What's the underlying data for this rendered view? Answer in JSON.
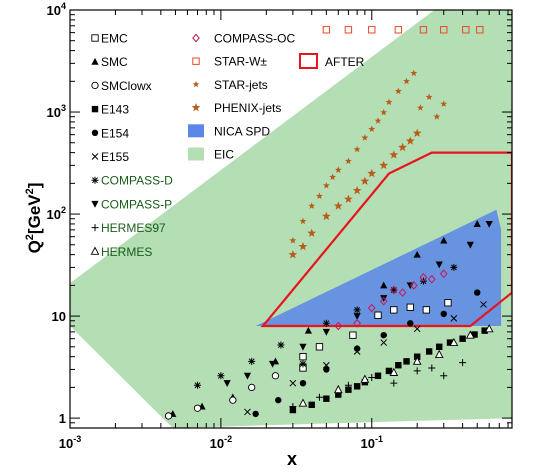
{
  "chart_data": {
    "type": "scatter",
    "xlabel": "x",
    "ylabel_main": "Q",
    "ylabel_sup1": "2",
    "ylabel_unit_open": "[GeV",
    "ylabel_sup2": "2",
    "ylabel_unit_close": "]",
    "x_scale": "log",
    "y_scale": "log",
    "xlim": [
      0.001,
      0.85
    ],
    "ylim": [
      0.8,
      10000
    ],
    "x_ticks": [
      {
        "value": 0.001,
        "base": "10",
        "exp": "-3"
      },
      {
        "value": 0.01,
        "base": "10",
        "exp": "-2"
      },
      {
        "value": 0.1,
        "base": "10",
        "exp": "-1"
      }
    ],
    "y_ticks": [
      {
        "value": 1,
        "label": "1"
      },
      {
        "value": 10,
        "label": "10"
      },
      {
        "value": 100,
        "base": "10",
        "exp": "2"
      },
      {
        "value": 1000,
        "base": "10",
        "exp": "3"
      },
      {
        "value": 10000,
        "base": "10",
        "exp": "4"
      }
    ],
    "regions": [
      {
        "name": "EIC",
        "color": "#b4deb4",
        "polygon": [
          [
            0.001,
            8
          ],
          [
            0.0048,
            0.8
          ],
          [
            0.85,
            1
          ],
          [
            0.85,
            10000
          ],
          [
            0.26,
            10000
          ],
          [
            0.001,
            21
          ]
        ]
      },
      {
        "name": "NICA SPD",
        "color": "#5b86e8",
        "polygon": [
          [
            0.017,
            8
          ],
          [
            0.3,
            8
          ],
          [
            0.72,
            8
          ],
          [
            0.72,
            70
          ],
          [
            0.67,
            110
          ],
          [
            0.017,
            8
          ]
        ]
      },
      {
        "name": "AFTER",
        "color": "#e8141e",
        "polygon": [
          [
            0.019,
            8
          ],
          [
            0.45,
            8
          ],
          [
            0.85,
            17
          ],
          [
            0.85,
            400
          ],
          [
            0.25,
            400
          ],
          [
            0.13,
            250
          ],
          [
            0.019,
            8
          ]
        ]
      }
    ],
    "series": [
      {
        "name": "EMC",
        "marker": "open-square",
        "points": [
          [
            0.035,
            3.1
          ],
          [
            0.035,
            4.0
          ],
          [
            0.045,
            5.0
          ],
          [
            0.075,
            6.5
          ],
          [
            0.11,
            10.2
          ],
          [
            0.14,
            11.5
          ],
          [
            0.18,
            12.2
          ],
          [
            0.23,
            11.5
          ],
          [
            0.32,
            13.5
          ]
        ]
      },
      {
        "name": "SMC",
        "marker": "filled-triangle",
        "points": [
          [
            0.0048,
            1.1
          ],
          [
            0.0075,
            1.3
          ],
          [
            0.012,
            1.6
          ],
          [
            0.023,
            3.6
          ],
          [
            0.038,
            7.2
          ],
          [
            0.12,
            20
          ],
          [
            0.2,
            40
          ],
          [
            0.3,
            55
          ],
          [
            0.5,
            80
          ]
        ]
      },
      {
        "name": "SMClowx",
        "marker": "open-circle",
        "points": [
          [
            0.0045,
            1.05
          ],
          [
            0.007,
            1.25
          ],
          [
            0.012,
            1.5
          ],
          [
            0.016,
            2.0
          ],
          [
            0.023,
            2.6
          ]
        ]
      },
      {
        "name": "E143",
        "marker": "filled-square",
        "points": [
          [
            0.03,
            1.2
          ],
          [
            0.04,
            1.35
          ],
          [
            0.05,
            1.55
          ],
          [
            0.06,
            1.7
          ],
          [
            0.07,
            1.9
          ],
          [
            0.08,
            2.05
          ],
          [
            0.09,
            2.25
          ],
          [
            0.11,
            2.6
          ],
          [
            0.13,
            2.9
          ],
          [
            0.15,
            3.3
          ],
          [
            0.17,
            3.6
          ],
          [
            0.2,
            4.0
          ],
          [
            0.24,
            4.5
          ],
          [
            0.28,
            5.0
          ],
          [
            0.33,
            5.5
          ],
          [
            0.4,
            6.0
          ],
          [
            0.48,
            6.6
          ],
          [
            0.56,
            7.2
          ]
        ]
      },
      {
        "name": "E154",
        "marker": "filled-circle",
        "points": [
          [
            0.017,
            1.1
          ],
          [
            0.024,
            1.5
          ],
          [
            0.035,
            2.2
          ],
          [
            0.05,
            3.0
          ],
          [
            0.08,
            4.8
          ],
          [
            0.12,
            6.5
          ],
          [
            0.18,
            8.5
          ],
          [
            0.3,
            10.5
          ],
          [
            0.5,
            17
          ]
        ]
      },
      {
        "name": "E155",
        "marker": "cross",
        "points": [
          [
            0.015,
            1.15
          ],
          [
            0.03,
            2.2
          ],
          [
            0.05,
            3.3
          ],
          [
            0.08,
            4.5
          ],
          [
            0.12,
            5.5
          ],
          [
            0.2,
            7.5
          ],
          [
            0.35,
            9.5
          ],
          [
            0.55,
            13
          ]
        ]
      },
      {
        "name": "COMPASS-D",
        "marker": "asterisk",
        "points": [
          [
            0.007,
            2.1
          ],
          [
            0.01,
            2.6
          ],
          [
            0.016,
            3.6
          ],
          [
            0.025,
            5.2
          ],
          [
            0.035,
            3.4
          ],
          [
            0.05,
            8.5
          ],
          [
            0.08,
            11.5
          ],
          [
            0.14,
            18
          ],
          [
            0.22,
            22
          ],
          [
            0.35,
            30
          ]
        ]
      },
      {
        "name": "COMPASS-P",
        "marker": "filled-down-triangle",
        "points": [
          [
            0.011,
            2.2
          ],
          [
            0.015,
            2.6
          ],
          [
            0.022,
            3.4
          ],
          [
            0.035,
            5.0
          ],
          [
            0.05,
            7.0
          ],
          [
            0.08,
            10
          ],
          [
            0.12,
            15
          ],
          [
            0.18,
            20
          ],
          [
            0.28,
            32
          ],
          [
            0.45,
            50
          ],
          [
            0.6,
            80
          ]
        ]
      },
      {
        "name": "HERMES97",
        "marker": "plus",
        "points": [
          [
            0.03,
            1.3
          ],
          [
            0.045,
            1.6
          ],
          [
            0.07,
            2.1
          ],
          [
            0.1,
            2.5
          ],
          [
            0.14,
            2.2
          ],
          [
            0.2,
            2.9
          ],
          [
            0.25,
            3.1
          ],
          [
            0.3,
            2.6
          ],
          [
            0.4,
            3.5
          ]
        ]
      },
      {
        "name": "HERMES",
        "marker": "open-triangle",
        "points": [
          [
            0.035,
            1.4
          ],
          [
            0.06,
            1.9
          ],
          [
            0.09,
            2.4
          ],
          [
            0.14,
            2.8
          ],
          [
            0.2,
            3.6
          ],
          [
            0.28,
            4.2
          ],
          [
            0.35,
            5.5
          ],
          [
            0.45,
            6.5
          ],
          [
            0.6,
            7.5
          ]
        ]
      },
      {
        "name": "COMPASS-OC",
        "marker": "open-diamond",
        "points": [
          [
            0.06,
            8.0
          ],
          [
            0.08,
            8.5
          ],
          [
            0.1,
            12
          ],
          [
            0.12,
            14
          ],
          [
            0.14,
            18
          ],
          [
            0.16,
            17
          ],
          [
            0.19,
            20
          ],
          [
            0.22,
            24
          ],
          [
            0.25,
            23
          ],
          [
            0.3,
            26
          ]
        ]
      },
      {
        "name": "STAR-W",
        "marker": "open-square-red",
        "points": [
          [
            0.05,
            6400
          ],
          [
            0.07,
            6400
          ],
          [
            0.1,
            6400
          ],
          [
            0.15,
            6400
          ],
          [
            0.22,
            6400
          ],
          [
            0.3,
            6400
          ],
          [
            0.42,
            6400
          ],
          [
            0.52,
            6400
          ]
        ]
      },
      {
        "name": "STAR-jets",
        "marker": "star-small",
        "points": [
          [
            0.03,
            55
          ],
          [
            0.035,
            85
          ],
          [
            0.04,
            120
          ],
          [
            0.045,
            150
          ],
          [
            0.05,
            190
          ],
          [
            0.055,
            230
          ],
          [
            0.06,
            270
          ],
          [
            0.07,
            330
          ],
          [
            0.08,
            430
          ],
          [
            0.09,
            560
          ],
          [
            0.1,
            680
          ],
          [
            0.11,
            820
          ],
          [
            0.12,
            990
          ],
          [
            0.13,
            1250
          ],
          [
            0.15,
            1600
          ],
          [
            0.17,
            2000
          ],
          [
            0.19,
            2400
          ],
          [
            0.21,
            1100
          ],
          [
            0.24,
            1400
          ],
          [
            0.27,
            900
          ],
          [
            0.3,
            1200
          ]
        ]
      },
      {
        "name": "PHENIX-jets",
        "marker": "star-large",
        "points": [
          [
            0.03,
            40
          ],
          [
            0.035,
            48
          ],
          [
            0.04,
            65
          ],
          [
            0.05,
            95
          ],
          [
            0.06,
            120
          ],
          [
            0.07,
            140
          ],
          [
            0.08,
            170
          ],
          [
            0.09,
            210
          ],
          [
            0.1,
            250
          ],
          [
            0.12,
            300
          ],
          [
            0.14,
            380
          ],
          [
            0.16,
            450
          ],
          [
            0.18,
            520
          ],
          [
            0.2,
            620
          ]
        ]
      }
    ]
  },
  "legend": {
    "col1": [
      {
        "name": "EMC",
        "marker": "open-square"
      },
      {
        "name": "SMC",
        "marker": "filled-triangle"
      },
      {
        "name": "SMClowx",
        "marker": "open-circle"
      },
      {
        "name": "E143",
        "marker": "filled-square"
      },
      {
        "name": "E154",
        "marker": "filled-circle"
      },
      {
        "name": "E155",
        "marker": "cross"
      },
      {
        "name": "COMPASS-D",
        "marker": "asterisk"
      },
      {
        "name": "COMPASS-P",
        "marker": "filled-down-triangle"
      },
      {
        "name": "HERMES97",
        "marker": "plus"
      },
      {
        "name": "HERMES",
        "marker": "open-triangle"
      }
    ],
    "col2": [
      {
        "name": "COMPASS-OC",
        "marker": "open-diamond"
      },
      {
        "name": "STAR-W±",
        "marker": "open-square-red"
      },
      {
        "name": "STAR-jets",
        "marker": "star-small"
      },
      {
        "name": "PHENIX-jets",
        "marker": "star-large"
      },
      {
        "name": "NICA SPD",
        "marker": "blue-box"
      },
      {
        "name": "EIC",
        "marker": "green-box"
      }
    ],
    "after_label": "AFTER"
  },
  "colors": {
    "eic": "#b4deb4",
    "nica": "#5b86e8",
    "after": "#e8141e",
    "compass_oc": "#c2185b",
    "stars": "#b85c1a",
    "star_w": "#e84a2a"
  }
}
